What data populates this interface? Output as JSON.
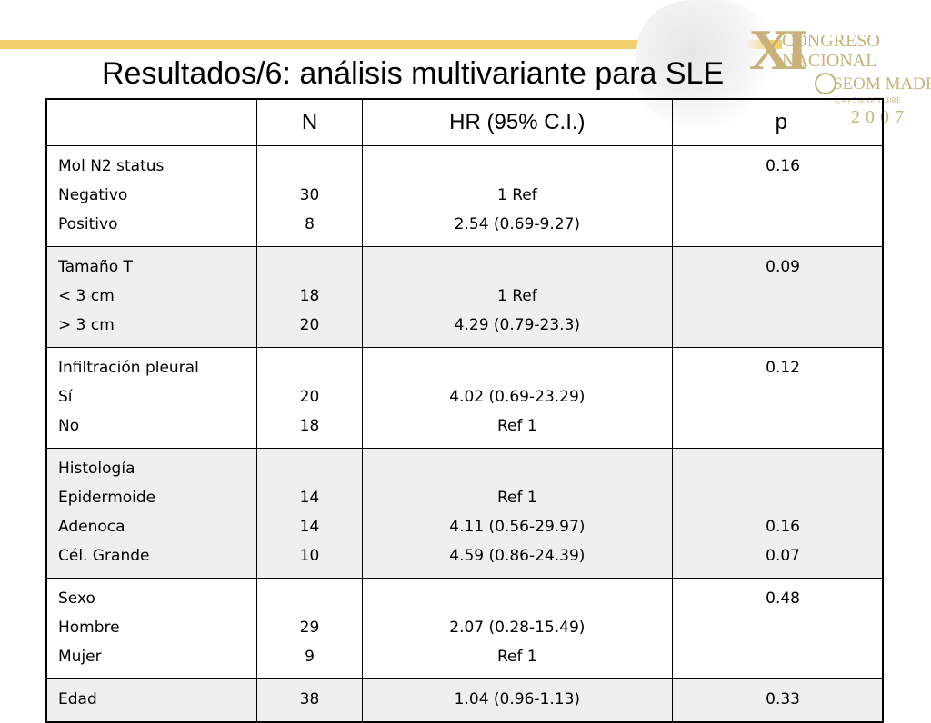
{
  "slide": {
    "title": "Resultados/6: análisis multivariante para SLE"
  },
  "logo": {
    "numeral": "XI",
    "line1": "CONGRESO",
    "line2": "NACIONAL",
    "line3": "SEOM MADRID",
    "subline": "3, 4 y 5 de OCTUBRE",
    "year": "2007",
    "accent_color": "#c9b27a"
  },
  "table": {
    "headers": [
      "",
      "N",
      "HR (95% C.I.)",
      "p"
    ],
    "groups": [
      {
        "labels": [
          "Mol N2 status",
          "Negativo",
          "Positivo"
        ],
        "n": [
          "",
          "30",
          "8"
        ],
        "hr": [
          "",
          "1 Ref",
          "2.54 (0.69-9.27)"
        ],
        "p": [
          "0.16",
          "",
          ""
        ]
      },
      {
        "labels": [
          "Tamaño T",
          "< 3 cm",
          "> 3 cm"
        ],
        "n": [
          "",
          "18",
          "20"
        ],
        "hr": [
          "",
          "1 Ref",
          "4.29 (0.79-23.3)"
        ],
        "p": [
          "0.09",
          "",
          ""
        ]
      },
      {
        "labels": [
          "Infiltración pleural",
          "Sí",
          "No"
        ],
        "n": [
          "",
          "20",
          "18"
        ],
        "hr": [
          "",
          "4.02 (0.69-23.29)",
          "Ref 1"
        ],
        "p": [
          "0.12",
          "",
          ""
        ]
      },
      {
        "labels": [
          "Histología",
          "Epidermoide",
          "Adenoca",
          "Cél. Grande"
        ],
        "n": [
          "",
          "14",
          "14",
          "10"
        ],
        "hr": [
          "",
          "Ref 1",
          "4.11 (0.56-29.97)",
          "4.59 (0.86-24.39)"
        ],
        "p": [
          "",
          "",
          "0.16",
          "0.07"
        ]
      },
      {
        "labels": [
          "Sexo",
          "Hombre",
          "Mujer"
        ],
        "n": [
          "",
          "29",
          "9"
        ],
        "hr": [
          "",
          "2.07 (0.28-15.49)",
          "Ref 1"
        ],
        "p": [
          "0.48",
          "",
          ""
        ]
      },
      {
        "labels": [
          "Edad"
        ],
        "n": [
          "38"
        ],
        "hr": [
          "1.04 (0.96-1.13)"
        ],
        "p": [
          "0.33"
        ]
      }
    ]
  },
  "colors": {
    "rule": "#f2cf6a",
    "row_shade": "#efefef"
  }
}
